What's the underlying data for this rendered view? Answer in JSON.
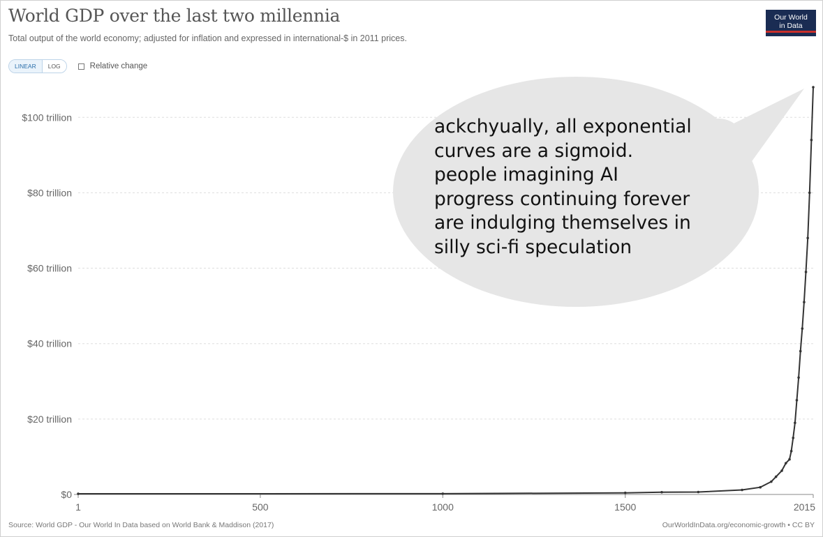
{
  "header": {
    "title": "World GDP over the last two millennia",
    "subtitle": "Total output of the world economy; adjusted for inflation and expressed in international-$ in 2011 prices.",
    "logo_line1": "Our World",
    "logo_line2": "in Data"
  },
  "controls": {
    "linear_label": "LINEAR",
    "log_label": "LOG",
    "relative_change_label": "Relative change"
  },
  "speech_bubble": {
    "text": "ackchyually, all exponential\ncurves are a sigmoid.\npeople imagining AI\nprogress continuing forever\nare indulging themselves in\nsilly sci-fi speculation"
  },
  "footer": {
    "source": "Source: World GDP - Our World In Data based on World Bank & Maddison (2017)",
    "url": "OurWorldInData.org/economic-growth • CC BY"
  },
  "colors": {
    "line": "#333333",
    "grid": "#dddddd",
    "bubble": "#e6e6e6",
    "logo_bg": "#1a2c53",
    "logo_accent": "#c9302c"
  },
  "chart_data": {
    "type": "line",
    "title": "World GDP over the last two millennia",
    "xlabel": "",
    "ylabel": "",
    "xlim": [
      1,
      2015
    ],
    "ylim": [
      0,
      108
    ],
    "x_ticks": [
      1,
      500,
      1000,
      1500,
      2015
    ],
    "x_tick_labels": [
      "1",
      "500",
      "1000",
      "1500",
      "2015"
    ],
    "y_ticks": [
      0,
      20,
      40,
      60,
      80,
      100
    ],
    "y_tick_labels": [
      "$0",
      "$20 trillion",
      "$40 trillion",
      "$60 trillion",
      "$80 trillion",
      "$100 trillion"
    ],
    "grid": true,
    "series": [
      {
        "name": "World GDP",
        "unit": "trillion international-$",
        "x": [
          1,
          1000,
          1500,
          1600,
          1700,
          1820,
          1870,
          1900,
          1913,
          1929,
          1940,
          1950,
          1955,
          1960,
          1965,
          1970,
          1975,
          1980,
          1985,
          1990,
          1995,
          2000,
          2005,
          2010,
          2015
        ],
        "y": [
          0.18,
          0.21,
          0.43,
          0.6,
          0.64,
          1.2,
          1.9,
          3.4,
          4.7,
          6.3,
          8.3,
          9.3,
          11.5,
          15,
          19,
          25,
          31,
          38,
          44,
          51,
          59,
          68,
          80,
          94,
          108
        ]
      }
    ]
  }
}
